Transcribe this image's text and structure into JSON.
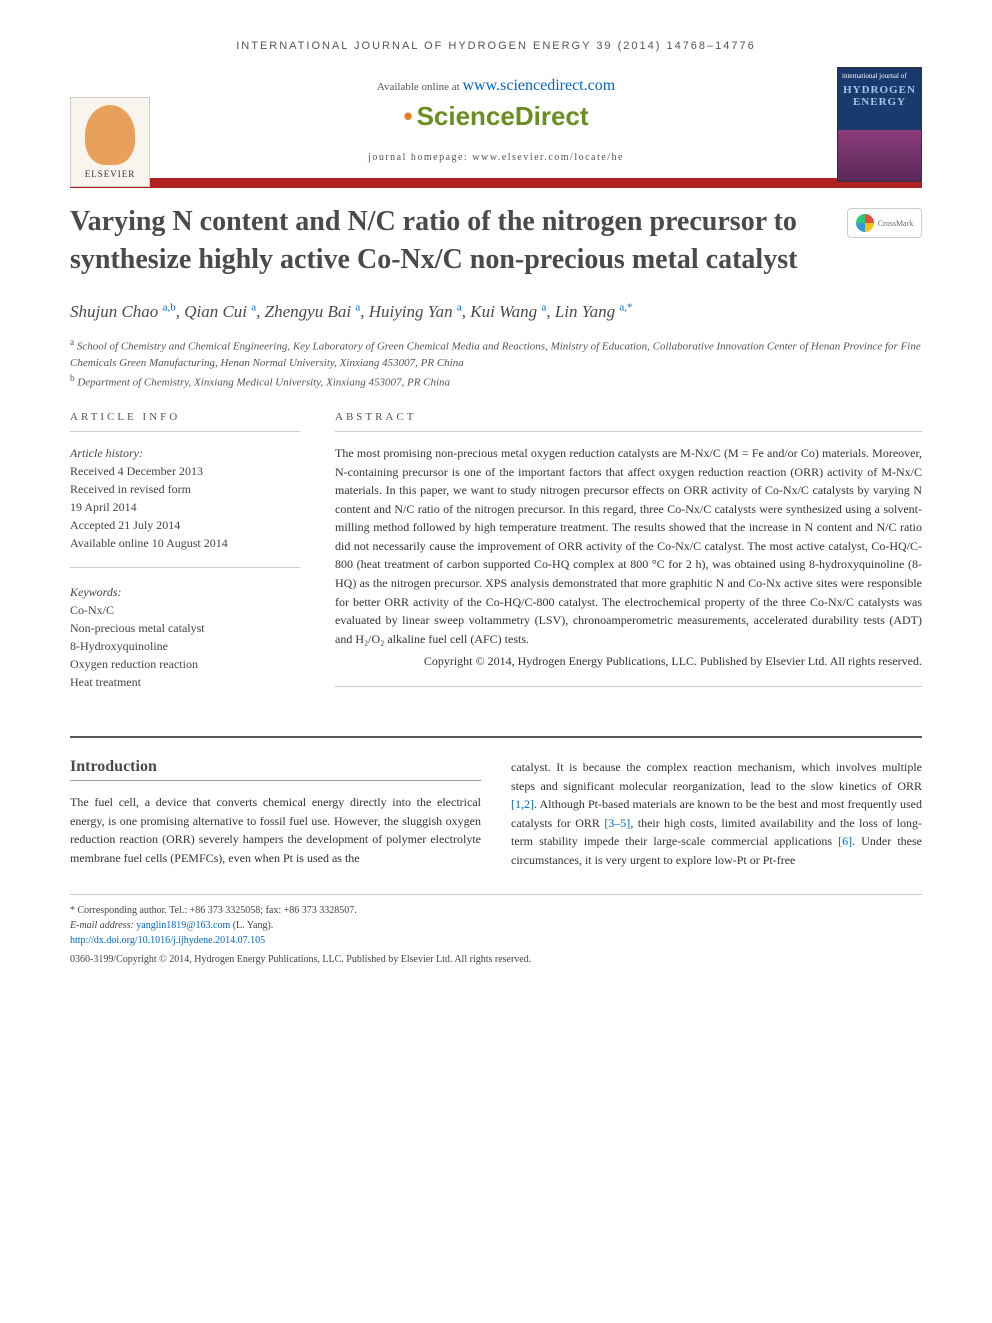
{
  "running_header": "INTERNATIONAL JOURNAL OF HYDROGEN ENERGY 39 (2014) 14768–14776",
  "available_text": "Available online at ",
  "available_link": "www.sciencedirect.com",
  "sciencedirect": "ScienceDirect",
  "homepage_text": "journal homepage: www.elsevier.com/locate/he",
  "elsevier_label": "ELSEVIER",
  "cover_small": "international journal of",
  "cover_main1": "HYDROGEN",
  "cover_main2": "ENERGY",
  "crossmark_label": "CrossMark",
  "title": "Varying N content and N/C ratio of the nitrogen precursor to synthesize highly active Co-Nx/C non-precious metal catalyst",
  "authors_html": "Shujun Chao <sup>a,b</sup>, Qian Cui <sup>a</sup>, Zhengyu Bai <sup>a</sup>, Huiying Yan <sup>a</sup>, Kui Wang <sup>a</sup>, Lin Yang <sup>a,*</sup>",
  "affil_a": "a School of Chemistry and Chemical Engineering, Key Laboratory of Green Chemical Media and Reactions, Ministry of Education, Collaborative Innovation Center of Henan Province for Fine Chemicals Green Manufacturing, Henan Normal University, Xinxiang 453007, PR China",
  "affil_b": "b Department of Chemistry, Xinxiang Medical University, Xinxiang 453007, PR China",
  "info_heading": "ARTICLE INFO",
  "abstract_heading": "ABSTRACT",
  "history_label": "Article history:",
  "history_lines": {
    "l1": "Received 4 December 2013",
    "l2": "Received in revised form",
    "l3": "19 April 2014",
    "l4": "Accepted 21 July 2014",
    "l5": "Available online 10 August 2014"
  },
  "keywords_label": "Keywords:",
  "keywords": {
    "k1": "Co-Nx/C",
    "k2": "Non-precious metal catalyst",
    "k3": "8-Hydroxyquinoline",
    "k4": "Oxygen reduction reaction",
    "k5": "Heat treatment"
  },
  "abstract_text": "The most promising non-precious metal oxygen reduction catalysts are M-Nx/C (M = Fe and/or Co) materials. Moreover, N-containing precursor is one of the important factors that affect oxygen reduction reaction (ORR) activity of M-Nx/C materials. In this paper, we want to study nitrogen precursor effects on ORR activity of Co-Nx/C catalysts by varying N content and N/C ratio of the nitrogen precursor. In this regard, three Co-Nx/C catalysts were synthesized using a solvent-milling method followed by high temperature treatment. The results showed that the increase in N content and N/C ratio did not necessarily cause the improvement of ORR activity of the Co-Nx/C catalyst. The most active catalyst, Co-HQ/C-800 (heat treatment of carbon supported Co-HQ complex at 800 °C for 2 h), was obtained using 8-hydroxyquinoline (8-HQ) as the nitrogen precursor. XPS analysis demonstrated that more graphitic N and Co-Nx active sites were responsible for better ORR activity of the Co-HQ/C-800 catalyst. The electrochemical property of the three Co-Nx/C catalysts was evaluated by linear sweep voltammetry (LSV), chronoamperometric measurements, accelerated durability tests (ADT) and H₂/O₂ alkaline fuel cell (AFC) tests.",
  "copyright_abstract": "Copyright © 2014, Hydrogen Energy Publications, LLC. Published by Elsevier Ltd. All rights reserved.",
  "intro_heading": "Introduction",
  "intro_col1": "The fuel cell, a device that converts chemical energy directly into the electrical energy, is one promising alternative to fossil fuel use. However, the sluggish oxygen reduction reaction (ORR) severely hampers the development of polymer electrolyte membrane fuel cells (PEMFCs), even when Pt is used as the",
  "intro_col2_pre": "catalyst. It is because the complex reaction mechanism, which involves multiple steps and significant molecular reorganization, lead to the slow kinetics of ORR ",
  "ref_12": "[1,2]",
  "intro_col2_mid1": ". Although Pt-based materials are known to be the best and most frequently used catalysts for ORR ",
  "ref_35": "[3–5]",
  "intro_col2_mid2": ", their high costs, limited availability and the loss of long-term stability impede their large-scale commercial applications ",
  "ref_6": "[6]",
  "intro_col2_end": ". Under these circumstances, it is very urgent to explore low-Pt or Pt-free",
  "corr_author": "* Corresponding author. Tel.: +86 373 3325058; fax: +86 373 3328507.",
  "email_label": "E-mail address: ",
  "email": "yanglin1819@163.com",
  "email_who": " (L. Yang).",
  "doi": "http://dx.doi.org/10.1016/j.ijhydene.2014.07.105",
  "bottom_copyright": "0360-3199/Copyright © 2014, Hydrogen Energy Publications, LLC. Published by Elsevier Ltd. All rights reserved.",
  "colors": {
    "red_bar": "#b22222",
    "link": "#0066cc",
    "title_gray": "#4a4a4a",
    "sciencedirect_green": "#6b8e23",
    "elsevier_orange": "#e8a05a"
  }
}
